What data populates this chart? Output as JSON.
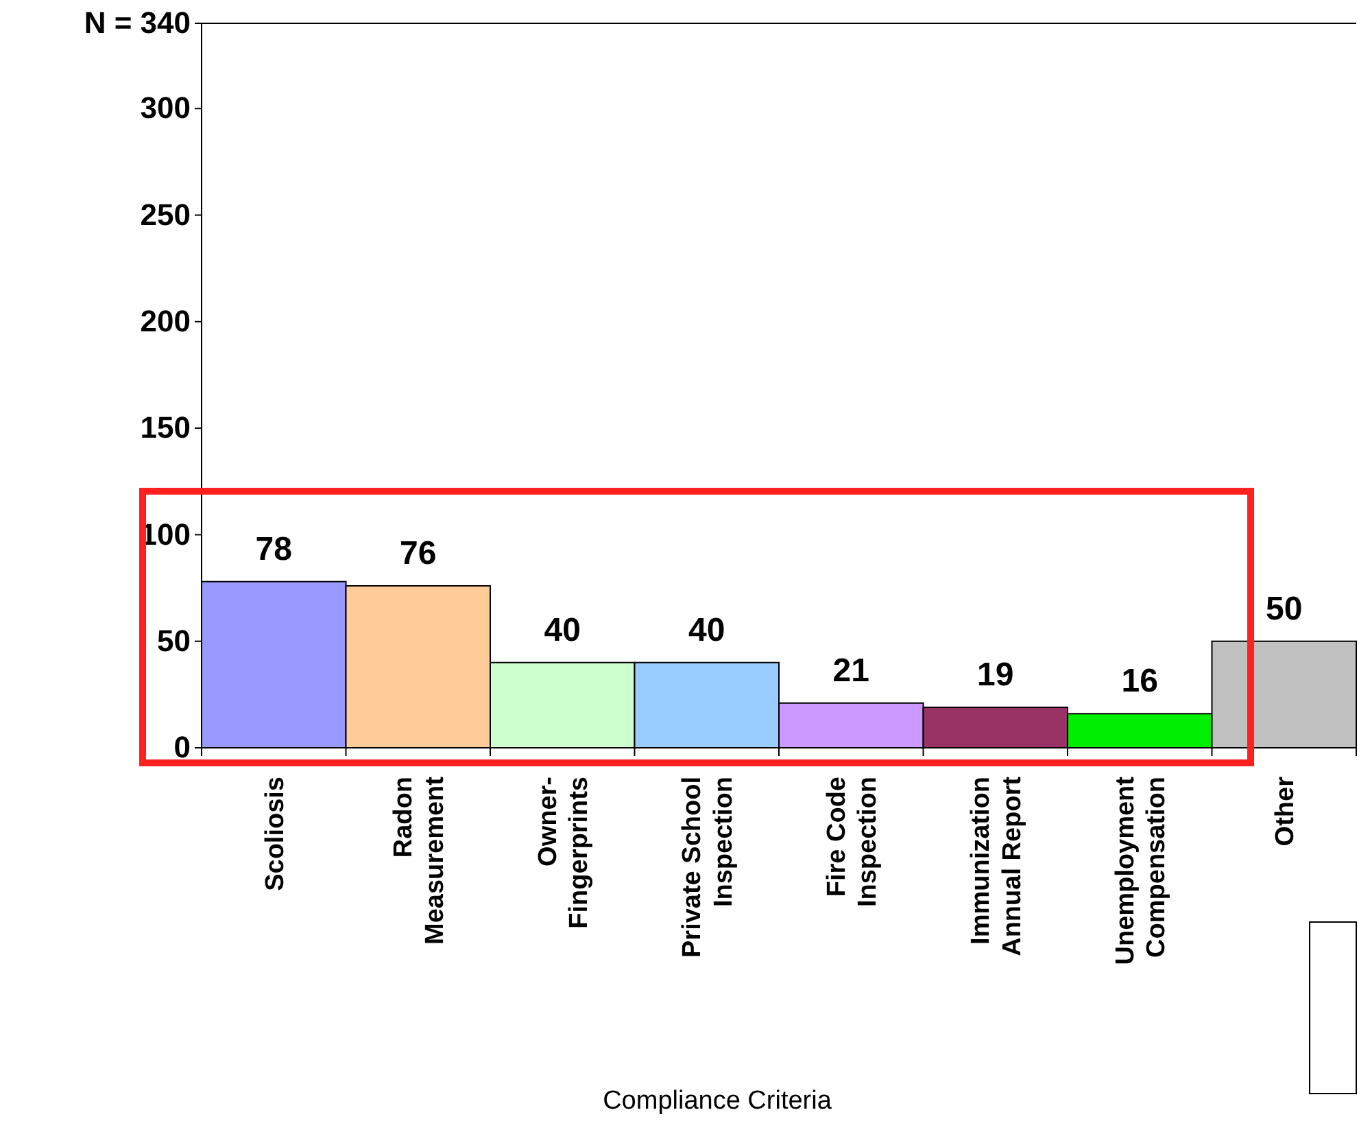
{
  "chart_data": {
    "type": "bar",
    "xlabel": "Compliance Criteria",
    "categories": [
      "Scoliosis",
      "Radon Measurement",
      "Owner-Fingerprints",
      "Private School Inspection",
      "Fire Code Inspection",
      "Immunization Annual Report",
      "Unemployment Compensation",
      "Other"
    ],
    "values": [
      78,
      76,
      40,
      40,
      21,
      19,
      16,
      50
    ],
    "colors": [
      "#9999ff",
      "#ffcc99",
      "#ccffcc",
      "#99ccff",
      "#cc99ff",
      "#993366",
      "#00ee00",
      "#c0c0c0"
    ],
    "ylim": [
      0,
      340
    ],
    "yticks": [
      0,
      50,
      100,
      150,
      200,
      250,
      300,
      {
        "value": 340,
        "label": "N = 340"
      }
    ],
    "data_labels": true,
    "grid": false
  }
}
